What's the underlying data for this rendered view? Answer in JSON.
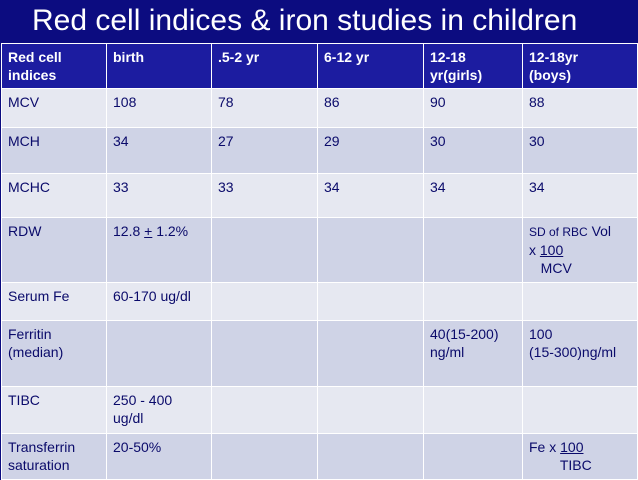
{
  "title": "Red cell indices & iron studies in children",
  "columns": [
    "Red cell\nindices",
    "birth",
    ".5-2 yr",
    "6-12 yr",
    "12-18\nyr(girls)",
    "12-18yr\n(boys)"
  ],
  "rows": [
    {
      "label": "MCV",
      "birth": "108",
      "y05_2": "78",
      "y6_12": "86",
      "girls": "90",
      "boys": "88"
    },
    {
      "label": "MCH",
      "birth": "34",
      "y05_2": "27",
      "y6_12": "29",
      "girls": "30",
      "boys": "30"
    },
    {
      "label": "MCHC",
      "birth": "33",
      "y05_2": "33",
      "y6_12": "34",
      "girls": "34",
      "boys": "34"
    },
    {
      "label": "RDW",
      "birth_value": "12.8 ",
      "birth_pm": "+",
      "birth_rest": " 1.2%",
      "y05_2": "",
      "y6_12": "",
      "girls": "",
      "boys_a": "SD of RBC",
      "boys_b": " Vol",
      "boys_c": "x ",
      "boys_d": "100",
      "boys_e": "   MCV"
    },
    {
      "label": "Serum Fe",
      "birth": "60-170 ug/dl",
      "y05_2": "",
      "y6_12": "",
      "girls": "",
      "boys": ""
    },
    {
      "label": "Ferritin\n(median)",
      "birth": "",
      "y05_2": "",
      "y6_12": "",
      "girls": "40(15-200)\nng/ml",
      "boys": "100\n(15-300)ng/ml"
    },
    {
      "label": "TIBC",
      "birth": "250 - 400\nug/dl",
      "y05_2": "",
      "y6_12": "",
      "girls": "",
      "boys": ""
    },
    {
      "label": "Transferrin\nsaturation",
      "birth": "20-50%",
      "y05_2": "",
      "y6_12": "",
      "girls": "",
      "boys_a": "Fe x ",
      "boys_b": "100",
      "boys_c": "        TIBC"
    }
  ]
}
